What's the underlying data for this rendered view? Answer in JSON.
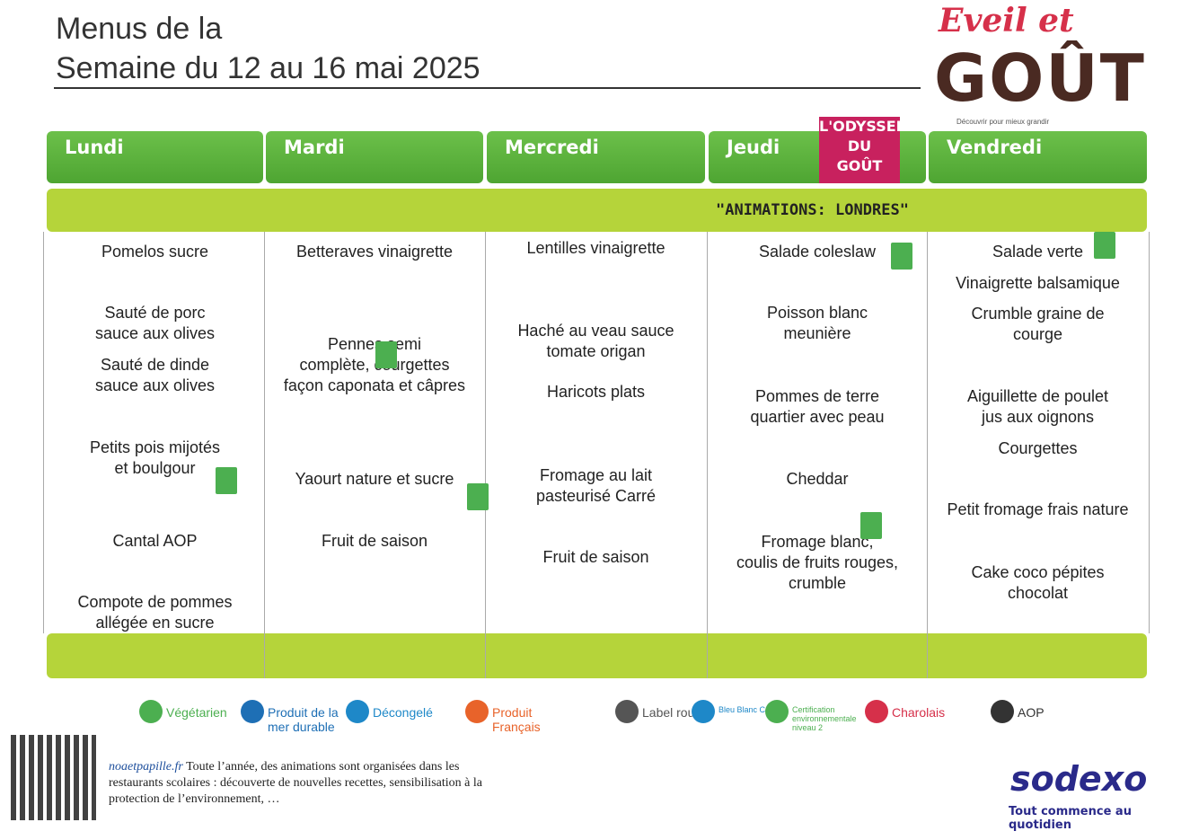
{
  "header": {
    "title_line1": "Menus de la",
    "title_line2": "Semaine du 12 au 16 mai 2025"
  },
  "logo": {
    "eveil": "Eveil et",
    "gout": "GOÛT",
    "tagline": "Découvrir pour mieux grandir"
  },
  "odyssee": "L'ODYSSEE\nDU\nGOÛT",
  "banner": "\"ANIMATIONS: LONDRES\"",
  "days": [
    {
      "name": "Lundi",
      "items": [
        "Pomelos sucre",
        "Sauté de porc\nsauce aux olives",
        "Sauté de dinde\nsauce aux olives",
        "Petits pois mijotés\net boulgour",
        "Cantal AOP",
        "Compote de pommes\nallégée en sucre"
      ]
    },
    {
      "name": "Mardi",
      "items": [
        "Betteraves vinaigrette",
        "Pennes semi\ncomplète, courgettes\nfaçon caponata et câpres",
        "Yaourt nature et sucre",
        "Fruit de saison"
      ]
    },
    {
      "name": "Mercredi",
      "items": [
        "Lentilles vinaigrette",
        "Haché au veau sauce\ntomate origan",
        "Haricots plats",
        "Fromage au lait\npasteurisé Carré",
        "Fruit de saison"
      ]
    },
    {
      "name": "Jeudi",
      "items": [
        "Salade coleslaw",
        "Poisson blanc\nmeunière",
        "Pommes de terre\nquartier avec peau",
        "Cheddar",
        "Fromage blanc,\ncoulis de fruits rouges,\ncrumble"
      ]
    },
    {
      "name": "Vendredi",
      "items": [
        "Salade verte",
        "Vinaigrette balsamique",
        "Crumble graine de\ncourge",
        "Aiguillette de poulet\njus aux oignons",
        "Courgettes",
        "Petit fromage frais nature",
        "Cake coco pépites\nchocolat"
      ]
    }
  ],
  "legend": [
    "Végétarien",
    "Produit de la mer durable",
    "Décongelé",
    "Produit Français",
    "Label rouge",
    "Bleu Blanc Coeur",
    "Certification environnementale niveau 2",
    "Charolais",
    "AOP"
  ],
  "footer": {
    "link": "noaetpapille.fr",
    "text": "Toute l’année, des animations sont organisées dans les restaurants scolaires : découverte de nouvelles recettes, sensibilisation à la protection de l’environnement, …"
  },
  "sodexo": {
    "name": "sodexo",
    "slogan": "Tout commence au quotidien"
  }
}
